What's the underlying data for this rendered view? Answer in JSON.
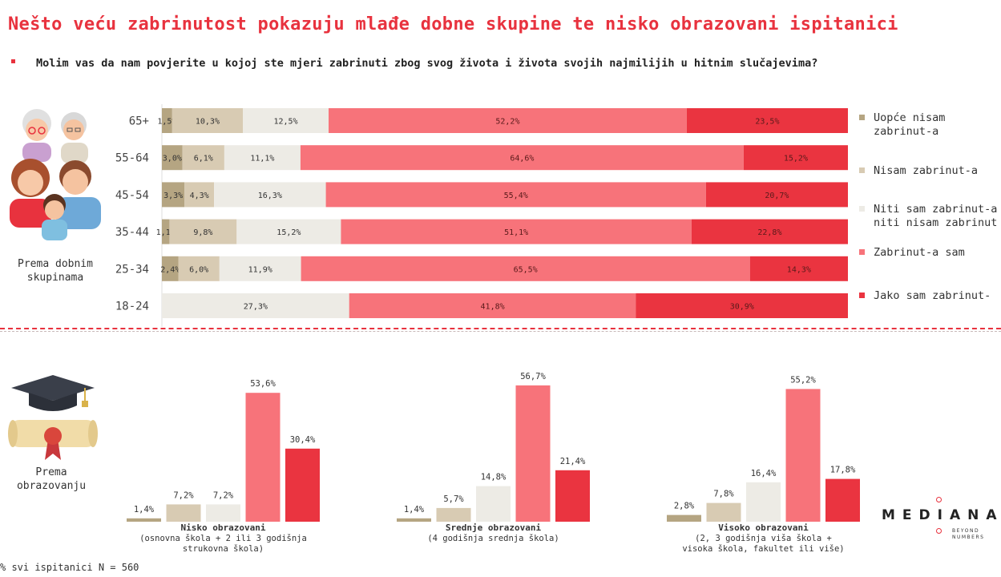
{
  "title": "Nešto veću zabrinutost pokazuju mlađe dobne skupine te nisko obrazovani ispitanici",
  "subtitle": "Molim vas da nam povjerite u kojoj ste mjeri zabrinuti zbog svog života i života svojih najmilijih u hitnim slučajevima?",
  "age_section_label": "Prema dobnim skupinama",
  "edu_section_label": "Prema obrazovanju",
  "footnote": "% svi ispitanici N = 560",
  "logo": {
    "name": "MEDIANA",
    "tagline_1": "BEYOND",
    "tagline_2": "NUMBERS"
  },
  "colors": {
    "uopce": "#b5a582",
    "nisam": "#d8cbb3",
    "niti": "#edebe5",
    "zabrinut": "#f7737a",
    "jako": "#ea3440",
    "accent": "#e8323e"
  },
  "chart_data": [
    {
      "type": "bar",
      "orientation": "horizontal",
      "stacked": true,
      "categories": [
        "65+",
        "55-64",
        "45-54",
        "35-44",
        "25-34",
        "18-24"
      ],
      "series": [
        {
          "name": "Uopće nisam zabrinut-a",
          "values": [
            1.5,
            3.0,
            3.3,
            1.1,
            2.4,
            null
          ],
          "labels": [
            "1,5%",
            "3,0%",
            "3,3%",
            "1,1%",
            "2,4%",
            ""
          ]
        },
        {
          "name": "Nisam zabrinut-a",
          "values": [
            10.3,
            6.1,
            4.3,
            9.8,
            6.0,
            null
          ],
          "labels": [
            "10,3%",
            "6,1%",
            "4,3%",
            "9,8%",
            "6,0%",
            ""
          ]
        },
        {
          "name": "Niti sam zabrinut-a niti nisam zabrinut-a",
          "values": [
            12.5,
            11.1,
            16.3,
            15.2,
            11.9,
            27.3
          ],
          "labels": [
            "12,5%",
            "11,1%",
            "16,3%",
            "15,2%",
            "11,9%",
            "27,3%"
          ]
        },
        {
          "name": "Zabrinut-a sam",
          "values": [
            52.2,
            64.6,
            55.4,
            51.1,
            65.5,
            41.8
          ],
          "labels": [
            "52,2%",
            "64,6%",
            "55,4%",
            "51,1%",
            "65,5%",
            "41,8%"
          ]
        },
        {
          "name": "Jako sam zabrinut-a",
          "values": [
            23.5,
            15.2,
            20.7,
            22.8,
            14.3,
            30.9
          ],
          "labels": [
            "23,5%",
            "15,2%",
            "20,7%",
            "22,8%",
            "14,3%",
            "30,9%"
          ]
        }
      ],
      "legend": {
        "position": "right",
        "items": [
          {
            "lines": [
              "Uopće nisam",
              "zabrinut-a"
            ],
            "color": "#b5a582"
          },
          {
            "lines": [
              "Nisam zabrinut-a"
            ],
            "color": "#d8cbb3"
          },
          {
            "lines": [
              "Niti sam zabrinut-a",
              "niti nisam zabrinut"
            ],
            "color": "#edebe5"
          },
          {
            "lines": [
              "Zabrinut-a sam"
            ],
            "color": "#f7737a"
          },
          {
            "lines": [
              "Jako sam zabrinut-"
            ],
            "color": "#ea3440"
          }
        ]
      }
    },
    {
      "type": "bar",
      "orientation": "vertical",
      "groups": [
        {
          "name_lines": [
            "Nisko obrazovani",
            "(osnovna škola + 2 ili 3 godišnja",
            "strukovna škola)"
          ],
          "values": [
            1.4,
            7.2,
            7.2,
            53.6,
            30.4
          ],
          "labels": [
            "1,4%",
            "7,2%",
            "7,2%",
            "53,6%",
            "30,4%"
          ]
        },
        {
          "name_lines": [
            "Srednje obrazovani",
            "(4 godišnja srednja škola)"
          ],
          "values": [
            1.4,
            5.7,
            14.8,
            56.7,
            21.4
          ],
          "labels": [
            "1,4%",
            "5,7%",
            "14,8%",
            "56,7%",
            "21,4%"
          ]
        },
        {
          "name_lines": [
            "Visoko obrazovani",
            "(2, 3 godišnja viša škola +",
            "visoka škola, fakultet ili više)"
          ],
          "values": [
            2.8,
            7.8,
            16.4,
            55.2,
            17.8
          ],
          "labels": [
            "2,8%",
            "7,8%",
            "16,4%",
            "55,2%",
            "17,8%"
          ]
        }
      ],
      "series_names": [
        "Uopće nisam zabrinut-a",
        "Nisam zabrinut-a",
        "Niti sam zabrinut-a niti nisam zabrinut-a",
        "Zabrinut-a sam",
        "Jako sam zabrinut-a"
      ]
    }
  ]
}
